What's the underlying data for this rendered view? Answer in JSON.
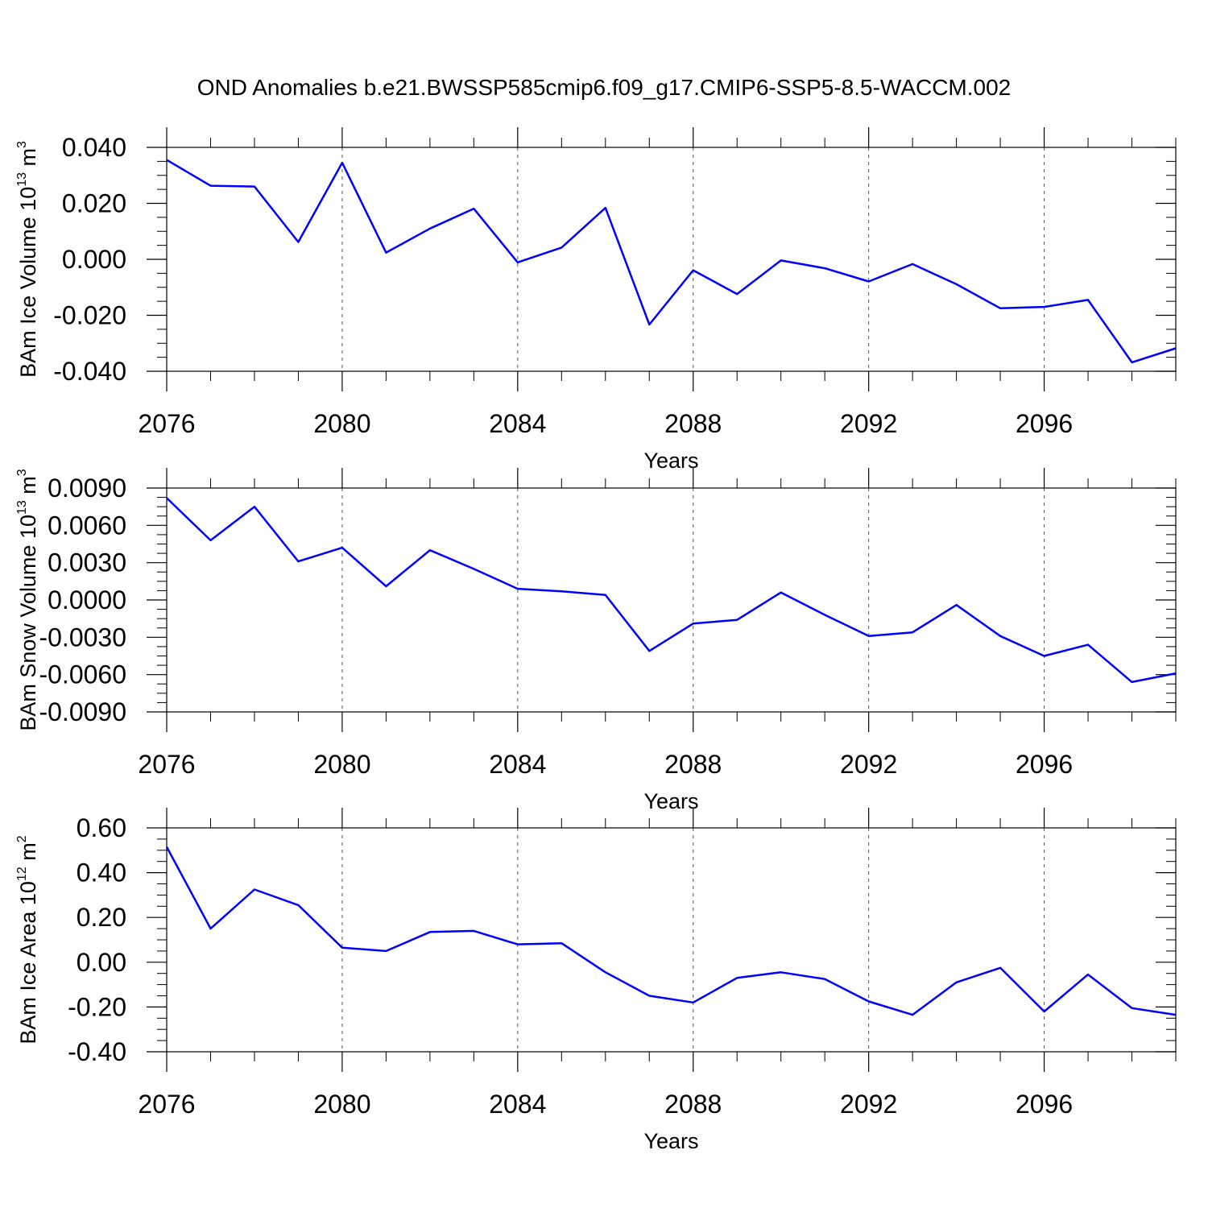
{
  "title": "OND Anomalies b.e21.BWSSP585cmip6.f09_g17.CMIP6-SSP5-8.5-WACCM.002",
  "colors": {
    "line": "#0000ff",
    "axis": "#000000"
  },
  "chart_data": [
    {
      "type": "line",
      "ylabel": "BAm Ice Volume 10",
      "ylabel_exp": "13",
      "ylabel_unit": " m",
      "ylabel_unit_exp": "3",
      "xlabel": "Years",
      "xlim": [
        2076,
        2099
      ],
      "ylim": [
        -0.04,
        0.04
      ],
      "xticks": [
        2076,
        2080,
        2084,
        2088,
        2092,
        2096
      ],
      "xtick_labels": [
        "2076",
        "2080",
        "2084",
        "2088",
        "2092",
        "2096"
      ],
      "yticks": [
        -0.04,
        -0.02,
        0.0,
        0.02,
        0.04
      ],
      "ytick_labels": [
        "-0.040",
        "-0.020",
        "0.000",
        "0.020",
        "0.040"
      ],
      "grid": "vertical dashed at major x ticks",
      "x": [
        2076,
        2077,
        2078,
        2079,
        2080,
        2081,
        2082,
        2083,
        2084,
        2085,
        2086,
        2087,
        2088,
        2089,
        2090,
        2091,
        2092,
        2093,
        2094,
        2095,
        2096,
        2097,
        2098,
        2099
      ],
      "series": [
        {
          "values": [
            0.0355,
            0.0263,
            0.026,
            0.0062,
            0.0345,
            0.0024,
            0.011,
            0.0181,
            -0.0011,
            0.0042,
            0.0184,
            -0.0233,
            -0.0039,
            -0.0124,
            -0.0004,
            -0.0032,
            -0.0079,
            -0.0017,
            -0.0089,
            -0.0175,
            -0.017,
            -0.0145,
            -0.0368,
            -0.0318
          ]
        }
      ]
    },
    {
      "type": "line",
      "ylabel": "BAm Snow Volume 10",
      "ylabel_exp": "13",
      "ylabel_unit": " m",
      "ylabel_unit_exp": "3",
      "xlabel": "Years",
      "xlim": [
        2076,
        2099
      ],
      "ylim": [
        -0.009,
        0.009
      ],
      "xticks": [
        2076,
        2080,
        2084,
        2088,
        2092,
        2096
      ],
      "xtick_labels": [
        "2076",
        "2080",
        "2084",
        "2088",
        "2092",
        "2096"
      ],
      "yticks": [
        -0.009,
        -0.006,
        -0.003,
        0.0,
        0.003,
        0.006,
        0.009
      ],
      "ytick_labels": [
        "-0.0090",
        "-0.0060",
        "-0.0030",
        "0.0000",
        "0.0030",
        "0.0060",
        "0.0090"
      ],
      "grid": "vertical dashed at major x ticks",
      "x": [
        2076,
        2077,
        2078,
        2079,
        2080,
        2081,
        2082,
        2083,
        2084,
        2085,
        2086,
        2087,
        2088,
        2089,
        2090,
        2091,
        2092,
        2093,
        2094,
        2095,
        2096,
        2097,
        2098,
        2099
      ],
      "series": [
        {
          "values": [
            0.0082,
            0.0048,
            0.0075,
            0.0031,
            0.0042,
            0.0011,
            0.004,
            0.0025,
            0.0009,
            0.0007,
            0.0004,
            -0.0041,
            -0.0019,
            -0.0016,
            0.0006,
            -0.0012,
            -0.0029,
            -0.0026,
            -0.0004,
            -0.0029,
            -0.0045,
            -0.0036,
            -0.0066,
            -0.0059
          ]
        }
      ]
    },
    {
      "type": "line",
      "ylabel": "BAm Ice Area 10",
      "ylabel_exp": "12",
      "ylabel_unit": " m",
      "ylabel_unit_exp": "2",
      "xlabel": "Years",
      "xlim": [
        2076,
        2099
      ],
      "ylim": [
        -0.4,
        0.6
      ],
      "xticks": [
        2076,
        2080,
        2084,
        2088,
        2092,
        2096
      ],
      "xtick_labels": [
        "2076",
        "2080",
        "2084",
        "2088",
        "2092",
        "2096"
      ],
      "yticks": [
        -0.4,
        -0.2,
        0.0,
        0.2,
        0.4,
        0.6
      ],
      "ytick_labels": [
        "-0.40",
        "-0.20",
        "0.00",
        "0.20",
        "0.40",
        "0.60"
      ],
      "grid": "vertical dashed at major x ticks",
      "x": [
        2076,
        2077,
        2078,
        2079,
        2080,
        2081,
        2082,
        2083,
        2084,
        2085,
        2086,
        2087,
        2088,
        2089,
        2090,
        2091,
        2092,
        2093,
        2094,
        2095,
        2096,
        2097,
        2098,
        2099
      ],
      "series": [
        {
          "values": [
            0.515,
            0.15,
            0.325,
            0.255,
            0.065,
            0.05,
            0.135,
            0.14,
            0.08,
            0.085,
            -0.045,
            -0.15,
            -0.18,
            -0.07,
            -0.045,
            -0.075,
            -0.175,
            -0.235,
            -0.09,
            -0.025,
            -0.22,
            -0.055,
            -0.205,
            -0.235
          ]
        }
      ]
    }
  ]
}
